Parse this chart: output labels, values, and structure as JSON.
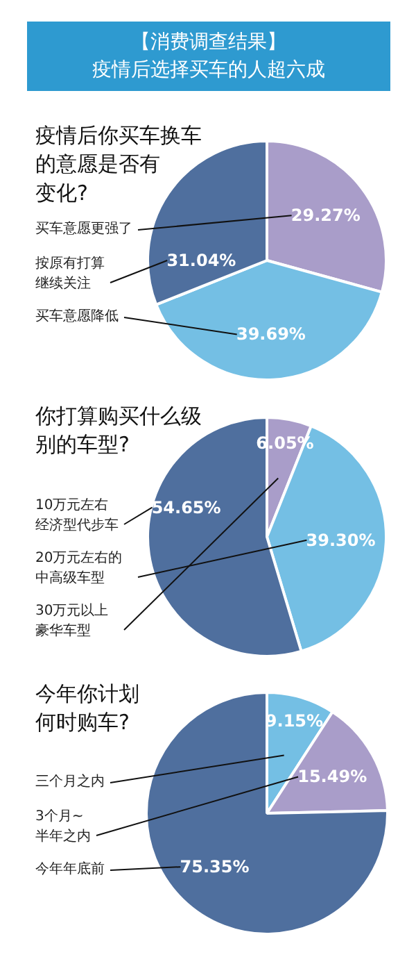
{
  "chart_data": [
    {
      "type": "pie",
      "title": "【消费调查结果】疫情后选择买车的人超六成",
      "subtitle": "疫情后你买车换车的意愿是否有变化?",
      "categories": [
        "买车意愿更强了",
        "买车意愿降低",
        "按原有打算继续关注"
      ],
      "values": [
        29.27,
        39.69,
        31.04
      ],
      "colors": [
        "#a99dc9",
        "#74bfe4",
        "#4f6f9e"
      ],
      "value_labels": [
        "29.27%",
        "39.69%",
        "31.04%"
      ]
    },
    {
      "type": "pie",
      "title": "你打算购买什么级别的车型?",
      "categories": [
        "30万元以上豪华车型",
        "20万元左右的中高级车型",
        "10万元左右经济型代步车"
      ],
      "values": [
        6.05,
        39.3,
        54.65
      ],
      "colors": [
        "#a99dc9",
        "#74bfe4",
        "#4f6f9e"
      ],
      "value_labels": [
        "6.05%",
        "39.30%",
        "54.65%"
      ]
    },
    {
      "type": "pie",
      "title": "今年你计划何时购车?",
      "categories": [
        "三个月之内",
        "3个月~半年之内",
        "今年年底前"
      ],
      "values": [
        9.15,
        15.49,
        75.35
      ],
      "colors": [
        "#74bfe4",
        "#a99dc9",
        "#4f6f9e"
      ],
      "value_labels": [
        "9.15%",
        "15.49%",
        "75.35%"
      ]
    }
  ]
}
